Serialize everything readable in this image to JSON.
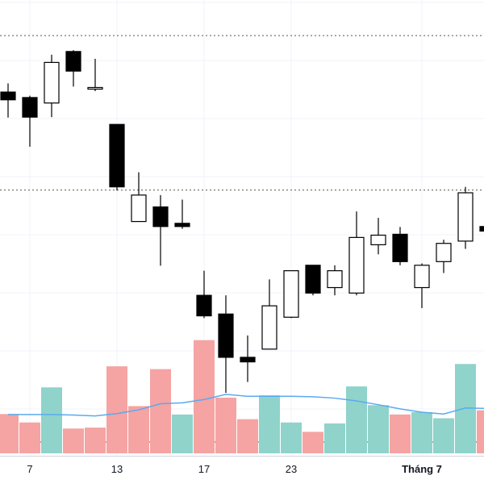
{
  "chart_data": {
    "type": "candlestick",
    "title": "",
    "xlabel": "",
    "ylabel": "",
    "grid": true,
    "legend": "none",
    "y_visible_range": [
      0,
      100
    ],
    "x_tick_labels": [
      {
        "index": 1,
        "label": "7"
      },
      {
        "index": 5,
        "label": "13"
      },
      {
        "index": 9,
        "label": "17"
      },
      {
        "index": 13,
        "label": "23"
      },
      {
        "index": 19,
        "label": "Tháng 7"
      }
    ],
    "reference_levels": [
      92.2,
      58.3,
      3.0
    ],
    "candles": [
      {
        "o": 79.8,
        "h": 81.7,
        "l": 74.2,
        "c": 78.1
      },
      {
        "o": 78.6,
        "h": 79.0,
        "l": 67.8,
        "c": 74.3
      },
      {
        "o": 77.4,
        "h": 88.0,
        "l": 74.3,
        "c": 86.3
      },
      {
        "o": 88.7,
        "h": 89.0,
        "l": 81.0,
        "c": 84.4
      },
      {
        "o": 80.8,
        "h": 87.1,
        "l": 80.0,
        "c": 80.8
      },
      {
        "o": 72.7,
        "h": 72.7,
        "l": 58.2,
        "c": 59.0
      },
      {
        "o": 51.4,
        "h": 62.2,
        "l": 51.4,
        "c": 57.2
      },
      {
        "o": 54.6,
        "h": 57.2,
        "l": 41.7,
        "c": 50.3
      },
      {
        "o": 51.0,
        "h": 56.2,
        "l": 49.8,
        "c": 50.3
      },
      {
        "o": 35.2,
        "h": 40.6,
        "l": 30.2,
        "c": 30.7
      },
      {
        "o": 31.1,
        "h": 35.2,
        "l": 13.8,
        "c": 21.6
      },
      {
        "o": 21.6,
        "h": 26.4,
        "l": 16.2,
        "c": 20.6
      },
      {
        "o": 23.4,
        "h": 38.7,
        "l": 23.4,
        "c": 32.9
      },
      {
        "o": 30.4,
        "h": 40.6,
        "l": 30.2,
        "c": 40.6
      },
      {
        "o": 41.8,
        "h": 41.8,
        "l": 35.2,
        "c": 35.7
      },
      {
        "o": 36.9,
        "h": 41.8,
        "l": 35.2,
        "c": 40.6
      },
      {
        "o": 35.7,
        "h": 53.6,
        "l": 35.2,
        "c": 47.9
      },
      {
        "o": 46.3,
        "h": 52.2,
        "l": 44.2,
        "c": 48.4
      },
      {
        "o": 48.6,
        "h": 50.2,
        "l": 41.8,
        "c": 42.6
      },
      {
        "o": 36.9,
        "h": 42.2,
        "l": 32.4,
        "c": 41.8
      },
      {
        "o": 42.6,
        "h": 47.4,
        "l": 40.1,
        "c": 46.6
      },
      {
        "o": 47.1,
        "h": 59.0,
        "l": 45.4,
        "c": 57.7
      },
      {
        "o": 50.3,
        "h": 54.6,
        "l": 48.6,
        "c": 49.3
      }
    ],
    "volume": [
      {
        "v": 8.4,
        "dir": "down"
      },
      {
        "v": 6.6,
        "dir": "down"
      },
      {
        "v": 14.1,
        "dir": "up"
      },
      {
        "v": 5.3,
        "dir": "down"
      },
      {
        "v": 5.5,
        "dir": "down"
      },
      {
        "v": 18.6,
        "dir": "down"
      },
      {
        "v": 10.1,
        "dir": "down"
      },
      {
        "v": 18.0,
        "dir": "down"
      },
      {
        "v": 8.3,
        "dir": "up"
      },
      {
        "v": 24.2,
        "dir": "down"
      },
      {
        "v": 11.9,
        "dir": "down"
      },
      {
        "v": 7.3,
        "dir": "down"
      },
      {
        "v": 12.4,
        "dir": "up"
      },
      {
        "v": 6.6,
        "dir": "up"
      },
      {
        "v": 4.6,
        "dir": "down"
      },
      {
        "v": 6.4,
        "dir": "up"
      },
      {
        "v": 14.3,
        "dir": "up"
      },
      {
        "v": 10.3,
        "dir": "up"
      },
      {
        "v": 8.3,
        "dir": "down"
      },
      {
        "v": 8.8,
        "dir": "up"
      },
      {
        "v": 7.5,
        "dir": "up"
      },
      {
        "v": 19.1,
        "dir": "up"
      },
      {
        "v": 9.2,
        "dir": "down"
      }
    ],
    "volume_ma": [
      8.3,
      8.3,
      8.3,
      8.2,
      8.0,
      8.5,
      9.3,
      10.6,
      10.8,
      11.5,
      12.6,
      12.2,
      12.2,
      12.2,
      12.1,
      11.8,
      11.2,
      10.4,
      9.5,
      8.8,
      8.4,
      9.7,
      9.6
    ]
  },
  "colors": {
    "background": "#ffffff",
    "grid": "#f0f3fa",
    "candle_outline": "#000000",
    "candle_up_fill": "#ffffff",
    "candle_down_fill": "#000000",
    "volume_up": "#8fd3cb",
    "volume_down": "#f5a3a3",
    "volume_ma_line": "#5aaaf0",
    "reference_line": "#555555",
    "axis_text": "#131722",
    "axis_line": "#d1d4dc"
  }
}
